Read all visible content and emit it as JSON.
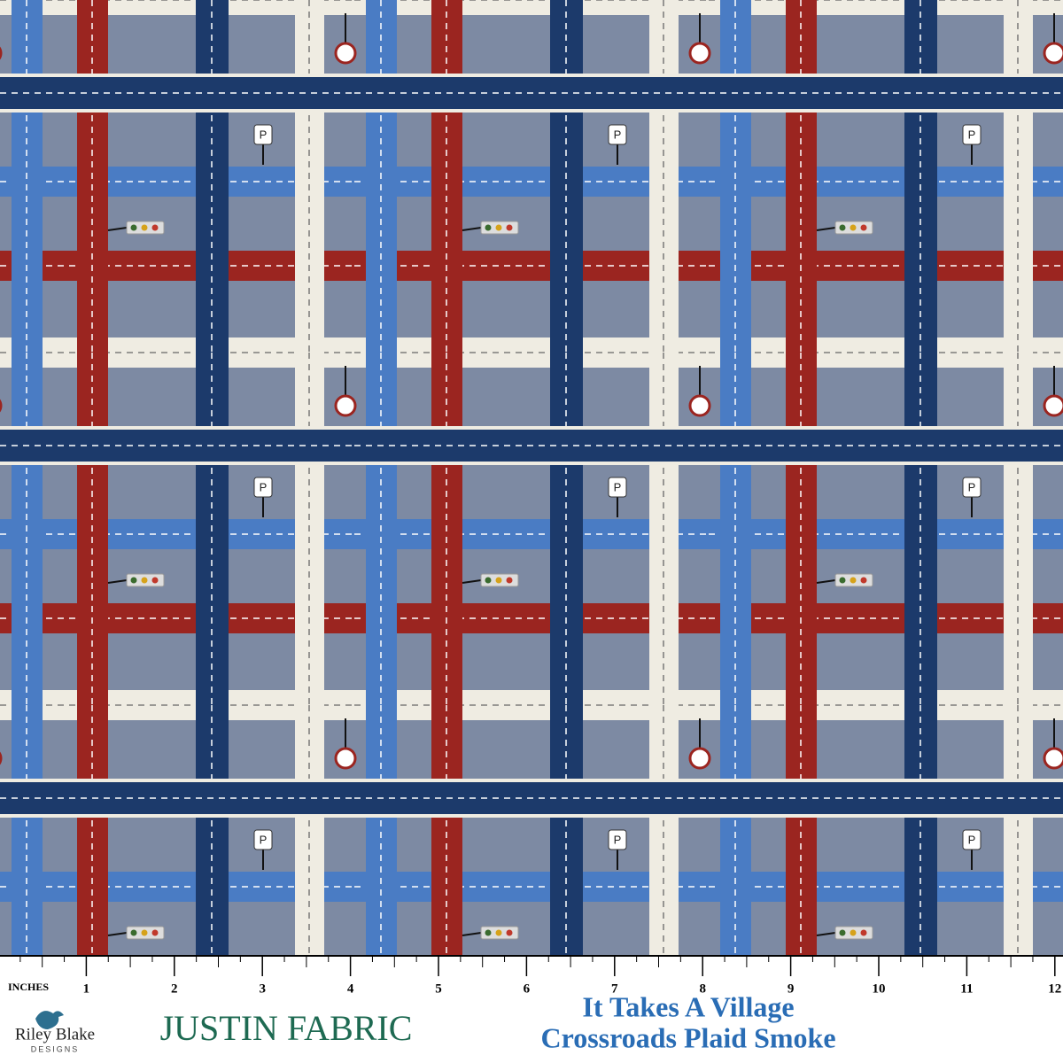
{
  "ruler": {
    "unit_label": "INCHES",
    "marks": [
      1,
      2,
      3,
      4,
      5,
      6,
      7,
      8,
      9,
      10,
      11,
      12
    ]
  },
  "signs": {
    "parking": "P"
  },
  "logos": {
    "riley_blake": "Riley Blake",
    "riley_blake_sub": "DESIGNS",
    "justin_fabric": "JUSTIN FABRIC"
  },
  "product": {
    "collection": "It Takes A Village",
    "name": "Crossroads Plaid Smoke"
  }
}
